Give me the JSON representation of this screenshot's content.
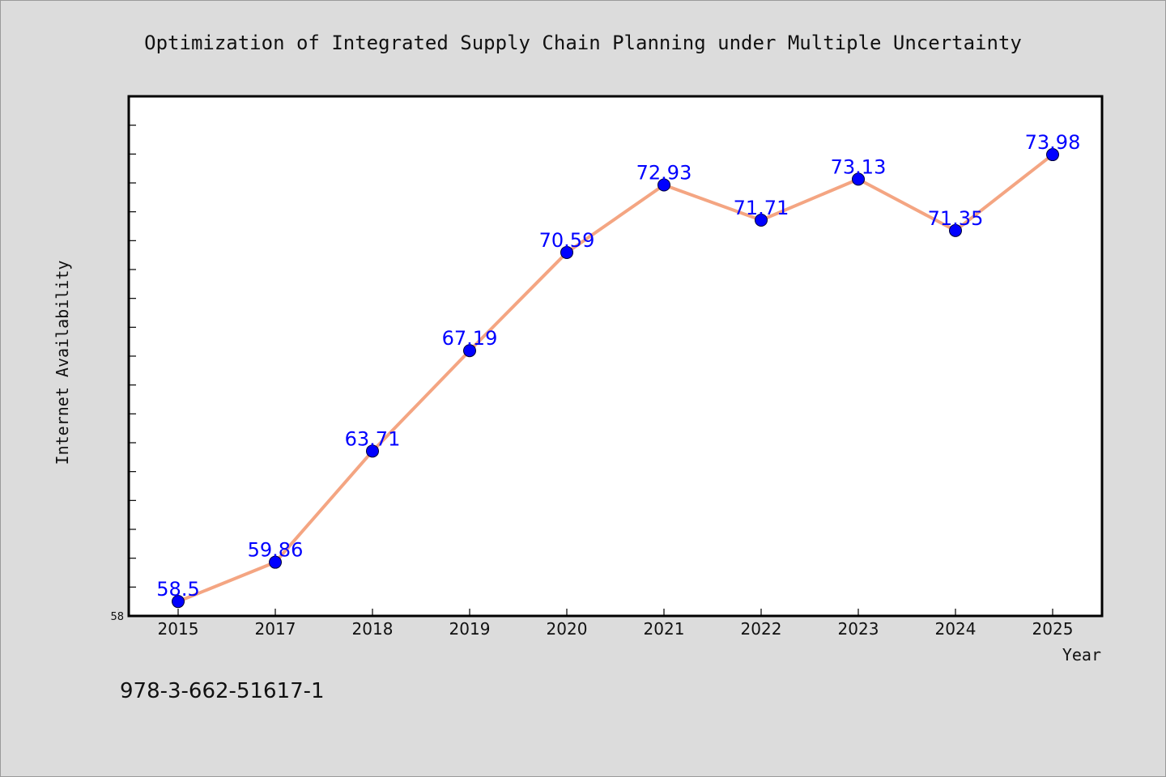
{
  "chart_data": {
    "type": "line",
    "title": "Optimization of Integrated Supply Chain Planning under Multiple Uncertainty",
    "xlabel": "Year",
    "ylabel": "Internet Availability",
    "categories": [
      "2015",
      "2017",
      "2018",
      "2019",
      "2020",
      "2021",
      "2022",
      "2023",
      "2024",
      "2025"
    ],
    "series": [
      {
        "values": [
          58.5,
          59.86,
          63.71,
          67.19,
          70.59,
          72.93,
          71.71,
          73.13,
          71.35,
          73.98
        ]
      }
    ],
    "data_labels": [
      "58.5",
      "59.86",
      "63.71",
      "67.19",
      "70.59",
      "72.93",
      "71.71",
      "73.13",
      "71.35",
      "73.98"
    ],
    "ylim": [
      58,
      76
    ],
    "y_tick_labels": [
      "58"
    ],
    "y_minor_tick_step": 1,
    "grid": false,
    "legend": "none",
    "line_color": "#f4a582",
    "marker_color": "#0000ff",
    "label_color": "#0000ff",
    "plot_background": "#ffffff",
    "figure_background": "#dcdcdc"
  },
  "footer": {
    "isbn": "978-3-662-51617-1"
  }
}
